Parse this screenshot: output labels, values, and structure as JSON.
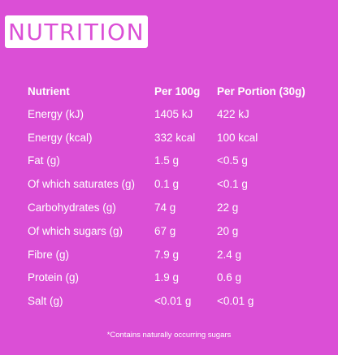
{
  "title": "NUTRITION",
  "table": {
    "headers": [
      "Nutrient",
      "Per 100g",
      "Per Portion (30g)"
    ],
    "rows": [
      [
        "Energy (kJ)",
        "1405 kJ",
        "422 kJ"
      ],
      [
        "Energy (kcal)",
        "332 kcal",
        "100 kcal"
      ],
      [
        "Fat (g)",
        "1.5 g",
        "<0.5 g"
      ],
      [
        "Of which saturates (g)",
        "0.1 g",
        "<0.1 g"
      ],
      [
        "Carbohydrates (g)",
        "74 g",
        "22 g"
      ],
      [
        "Of which sugars (g)",
        "67 g",
        "20 g"
      ],
      [
        "Fibre (g)",
        "7.9 g",
        "2.4 g"
      ],
      [
        "Protein (g)",
        "1.9 g",
        "0.6 g"
      ],
      [
        "Salt (g)",
        "<0.01 g",
        "<0.01 g"
      ]
    ]
  },
  "footnote": "*Contains naturally occurring sugars",
  "colors": {
    "background": "#db4fd6",
    "title_box": "#ffffff",
    "text": "#ffffff"
  }
}
